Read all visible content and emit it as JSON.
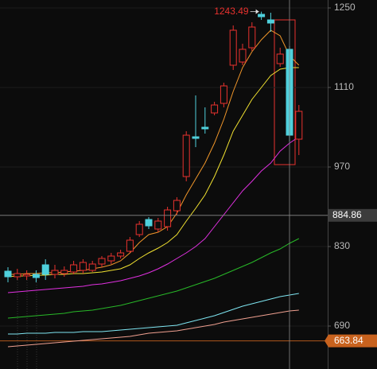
{
  "chart_data": {
    "type": "candlestick",
    "open": [
      786.6,
      776.8,
      778.2,
      781,
      797.8,
      781,
      782.4,
      785.2,
      788,
      788,
      799.2,
      804.8,
      813.2,
      821.6,
      851,
      877.6,
      860.8,
      865,
      893,
      953.2,
      1023.2,
      1040,
      1065.2,
      1082,
      1149.2,
      1154.8,
      1180,
      1238.8,
      1229,
      1152,
      1177.2,
      1019
    ],
    "high": [
      793.6,
      790.8,
      788,
      788,
      807.6,
      797.8,
      795,
      804.8,
      807.6,
      804.8,
      813.2,
      818.8,
      824.4,
      846.8,
      874.8,
      881.8,
      880.4,
      900,
      916.8,
      1033,
      1096,
      1075,
      1084.8,
      1118.4,
      1219.2,
      1187,
      1224.8,
      1243.49,
      1241.6,
      1180,
      1182.8,
      1079.2
    ],
    "low": [
      767,
      771.2,
      771.2,
      767,
      771.2,
      774,
      776.8,
      781,
      782.4,
      785.2,
      793.6,
      799.2,
      809,
      818.8,
      846.8,
      860.8,
      855.2,
      858,
      886,
      944.8,
      1005,
      1028.8,
      1061,
      1075,
      1140.8,
      1149.2,
      1174.4,
      1229,
      1208,
      1146.4,
      1014.8,
      991
    ],
    "close": [
      776.8,
      782.4,
      781,
      775.4,
      781,
      788,
      788,
      797.8,
      802,
      799.2,
      809,
      813.2,
      818.8,
      841.2,
      869.2,
      866.4,
      874.8,
      894.4,
      911.2,
      1026,
      1020.4,
      1037.2,
      1079.2,
      1112.8,
      1210.8,
      1177.2,
      1216.4,
      1234.6,
      1223.4,
      1168.8,
      1026,
      1068
    ],
    "up_color": "#e8322e",
    "down_color": "#4fd0dc",
    "series": [
      {
        "color": "#f0e030",
        "values": [
          776.8,
          778.2,
          778.2,
          779.6,
          779.6,
          781,
          781,
          782.4,
          782.4,
          783.8,
          785.2,
          788,
          790.8,
          797.8,
          809,
          818.8,
          827.2,
          837,
          851,
          874.8,
          897.2,
          921,
          953.2,
          991,
          1033,
          1061,
          1089,
          1110,
          1131,
          1142.2,
          1145,
          1145
        ]
      },
      {
        "color": "#f0962a",
        "values": [
          781,
          781,
          782.4,
          782.4,
          783.8,
          783.8,
          785.2,
          786.6,
          788,
          790.8,
          793.6,
          797.8,
          804.8,
          818.8,
          837,
          851,
          855.2,
          865,
          888.8,
          921,
          949,
          977,
          1012,
          1054,
          1103,
          1145,
          1173,
          1194,
          1210.8,
          1201,
          1166,
          1149.2
        ]
      },
      {
        "color": "#e030e0",
        "values": [
          748.8,
          750.2,
          751.6,
          753,
          754.4,
          755.8,
          757.2,
          758.6,
          760,
          762.8,
          764.2,
          767,
          769.8,
          774,
          778.2,
          783.8,
          790.8,
          799.2,
          809,
          818.8,
          830,
          844,
          865,
          886,
          907,
          928,
          944.8,
          963,
          977,
          998,
          1012,
          1023.2
        ]
      },
      {
        "color": "#28b828",
        "values": [
          704,
          705.4,
          706.8,
          708.2,
          709.6,
          711,
          712.4,
          715.2,
          716.6,
          718,
          720.8,
          723.6,
          726.4,
          730.6,
          734.8,
          739,
          743.2,
          747.4,
          751.6,
          757.2,
          762.8,
          768.4,
          774,
          781,
          788,
          795,
          802,
          810.4,
          818.8,
          825.8,
          835.6,
          844
        ]
      },
      {
        "color": "#7fe6f2",
        "values": [
          676,
          676,
          677.4,
          677.4,
          677.4,
          678.8,
          678.8,
          678.8,
          680.2,
          680.2,
          680.2,
          681.6,
          683,
          684.4,
          685.8,
          687.2,
          688.6,
          690,
          691.4,
          695.6,
          699.8,
          704,
          708.2,
          713.8,
          719.4,
          725,
          729.2,
          733.4,
          737.6,
          741.8,
          744.6,
          747.4
        ]
      },
      {
        "color": "#f0a090",
        "values": [
          653.6,
          655,
          656.4,
          657.8,
          659.2,
          660.6,
          662,
          663.4,
          664.8,
          666.2,
          667.6,
          669,
          670.4,
          671.8,
          674.6,
          677.4,
          678.8,
          680.2,
          681.6,
          684.4,
          687.2,
          690,
          692.8,
          697,
          699.8,
          702.6,
          705.4,
          708.2,
          711,
          713.8,
          716.6,
          718
        ]
      }
    ],
    "ylim": [
      614.4,
      1264
    ],
    "yticks": [
      690,
      830,
      970,
      1110,
      1250
    ],
    "grid": true,
    "high_marker_index": 27,
    "high_marker_color": "#e8322e",
    "crosshair": {
      "price": 884.86,
      "index": 30,
      "color": "#3c3c3c"
    },
    "reference_price": {
      "value": 663.84,
      "color": "#c8621e"
    }
  }
}
